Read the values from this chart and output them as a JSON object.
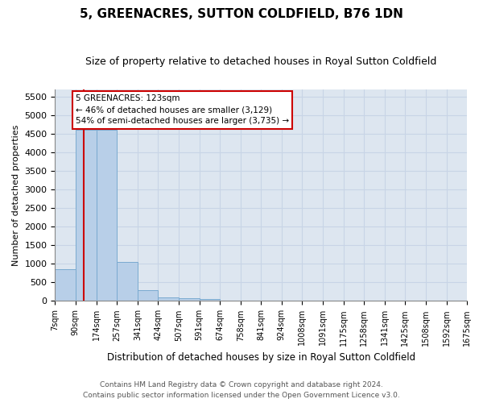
{
  "title": "5, GREENACRES, SUTTON COLDFIELD, B76 1DN",
  "subtitle": "Size of property relative to detached houses in Royal Sutton Coldfield",
  "xlabel": "Distribution of detached houses by size in Royal Sutton Coldfield",
  "ylabel": "Number of detached properties",
  "footnote1": "Contains HM Land Registry data © Crown copyright and database right 2024.",
  "footnote2": "Contains public sector information licensed under the Open Government Licence v3.0.",
  "property_label": "5 GREENACRES: 123sqm",
  "annotation_line1": "← 46% of detached houses are smaller (3,129)",
  "annotation_line2": "54% of semi-detached houses are larger (3,735) →",
  "bin_labels": [
    "7sqm",
    "90sqm",
    "174sqm",
    "257sqm",
    "341sqm",
    "424sqm",
    "507sqm",
    "591sqm",
    "674sqm",
    "758sqm",
    "841sqm",
    "924sqm",
    "1008sqm",
    "1091sqm",
    "1175sqm",
    "1258sqm",
    "1341sqm",
    "1425sqm",
    "1508sqm",
    "1592sqm",
    "1675sqm"
  ],
  "bin_edges": [
    7,
    90,
    174,
    257,
    341,
    424,
    507,
    591,
    674,
    758,
    841,
    924,
    1008,
    1091,
    1175,
    1258,
    1341,
    1425,
    1508,
    1592,
    1675
  ],
  "bar_heights": [
    850,
    4600,
    4600,
    1050,
    300,
    100,
    80,
    60,
    0,
    0,
    0,
    0,
    0,
    0,
    0,
    0,
    0,
    0,
    0,
    0
  ],
  "bar_color": "#b8cfe8",
  "bar_edge_color": "#7aaad0",
  "red_line_x": 123,
  "ylim": [
    0,
    5700
  ],
  "yticks": [
    0,
    500,
    1000,
    1500,
    2000,
    2500,
    3000,
    3500,
    4000,
    4500,
    5000,
    5500
  ],
  "annotation_box_color": "#ffffff",
  "annotation_box_edge": "#cc0000",
  "red_line_color": "#cc0000",
  "grid_color": "#c8d4e6",
  "bg_color": "#dde6f0"
}
